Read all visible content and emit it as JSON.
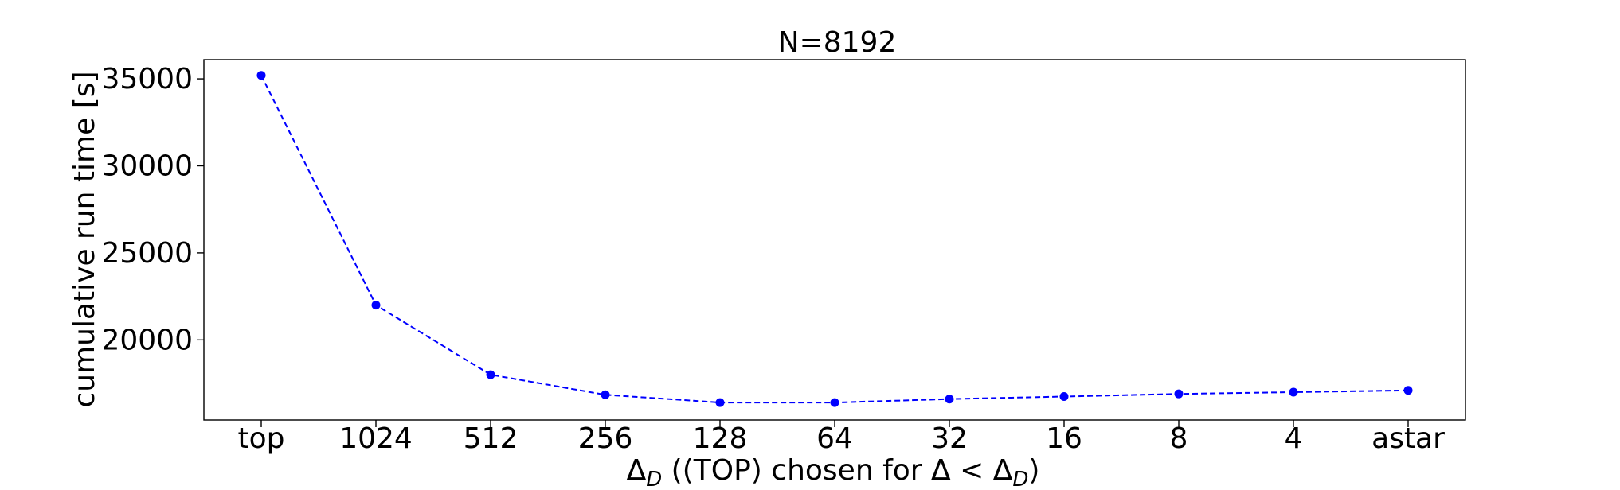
{
  "chart_data": {
    "type": "line",
    "title": "N=8192",
    "xlabel_parts": {
      "delta": "Δ",
      "sub_d": "D",
      "middle": " ((TOP) chosen for Δ < Δ",
      "sub_d2": "D",
      "end": ")"
    },
    "ylabel": "cumulative run time [s]",
    "categories": [
      "top",
      "1024",
      "512",
      "256",
      "128",
      "64",
      "32",
      "16",
      "8",
      "4",
      "astar"
    ],
    "series": [
      {
        "values": [
          35200,
          22000,
          18000,
          16850,
          16400,
          16400,
          16600,
          16750,
          16900,
          17000,
          17100
        ],
        "color": "#0000ff",
        "line_style": "dashed",
        "marker": "circle"
      }
    ],
    "yticks": [
      20000,
      25000,
      30000,
      35000
    ],
    "ytick_labels": [
      "20000",
      "25000",
      "30000",
      "35000"
    ],
    "ylim": [
      15400,
      36100
    ],
    "grid": false
  }
}
